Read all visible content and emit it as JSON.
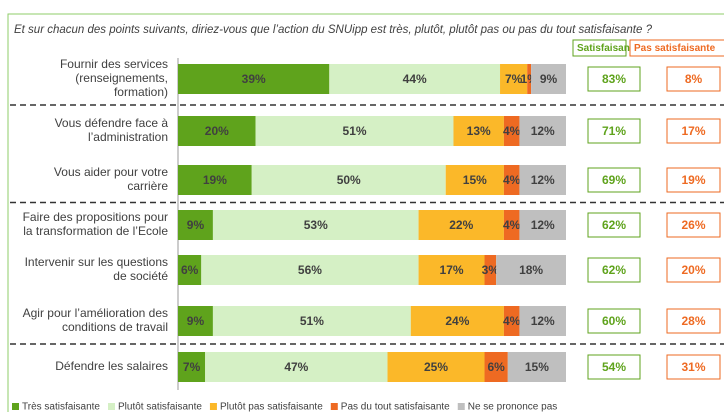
{
  "chart_data": {
    "type": "stacked_bar_horizontal",
    "title": "Et sur chacun des points suivants, diriez-vous que l’action du SNUipp est très, plutôt, plutôt pas ou pas du tout satisfaisante ?",
    "categories": [
      [
        "Fournir des services",
        "(renseignements,",
        "formation)"
      ],
      [
        "Vous défendre face à",
        "l’administration"
      ],
      [
        "Vous aider pour votre",
        "carrière"
      ],
      [
        "Faire des propositions pour",
        "la transformation de l’Ecole"
      ],
      [
        "Intervenir sur les questions",
        "de société"
      ],
      [
        "Agir pour l’amélioration des",
        "conditions de travail"
      ],
      [
        "Défendre les salaires"
      ]
    ],
    "xlim": [
      0,
      100
    ],
    "series": [
      {
        "name": "Très satisfaisante",
        "color": "#5fa31c",
        "values": [
          39,
          20,
          19,
          9,
          6,
          9,
          7
        ],
        "value_labels": [
          "39%",
          "20%",
          "19%",
          "9%",
          "6%",
          "9%",
          "7%"
        ]
      },
      {
        "name": "Plutôt satisfaisante",
        "color": "#d5f0c5",
        "values": [
          44,
          51,
          50,
          53,
          56,
          51,
          47
        ],
        "value_labels": [
          "44%",
          "51%",
          "50%",
          "53%",
          "56%",
          "51%",
          "47%"
        ]
      },
      {
        "name": "Plutôt pas satisfaisante",
        "color": "#fbb829",
        "values": [
          7,
          13,
          15,
          22,
          17,
          24,
          25
        ],
        "value_labels": [
          "7%",
          "13%",
          "15%",
          "22%",
          "17%",
          "24%",
          "25%"
        ]
      },
      {
        "name": "Pas du tout satisfaisante",
        "color": "#ee6a22",
        "values": [
          1,
          4,
          4,
          4,
          3,
          4,
          6
        ],
        "value_labels": [
          "1%",
          "4%",
          "4%",
          "4%",
          "3%",
          "4%",
          "6%"
        ]
      },
      {
        "name": "Ne se prononce pas",
        "color": "#bfbfbf",
        "values": [
          9,
          12,
          12,
          12,
          18,
          12,
          15
        ],
        "value_labels": [
          "9%",
          "12%",
          "12%",
          "12%",
          "18%",
          "12%",
          "15%"
        ]
      }
    ],
    "summary": [
      {
        "header": "Satisfaisante",
        "color": "#5fa31c",
        "values": [
          83,
          71,
          69,
          62,
          62,
          60,
          54
        ],
        "value_labels": [
          "83%",
          "71%",
          "69%",
          "62%",
          "62%",
          "60%",
          "54%"
        ]
      },
      {
        "header": "Pas satisfaisante",
        "color": "#ee6a22",
        "values": [
          8,
          17,
          19,
          26,
          20,
          28,
          31
        ],
        "value_labels": [
          "8%",
          "17%",
          "19%",
          "26%",
          "20%",
          "28%",
          "31%"
        ]
      }
    ]
  }
}
